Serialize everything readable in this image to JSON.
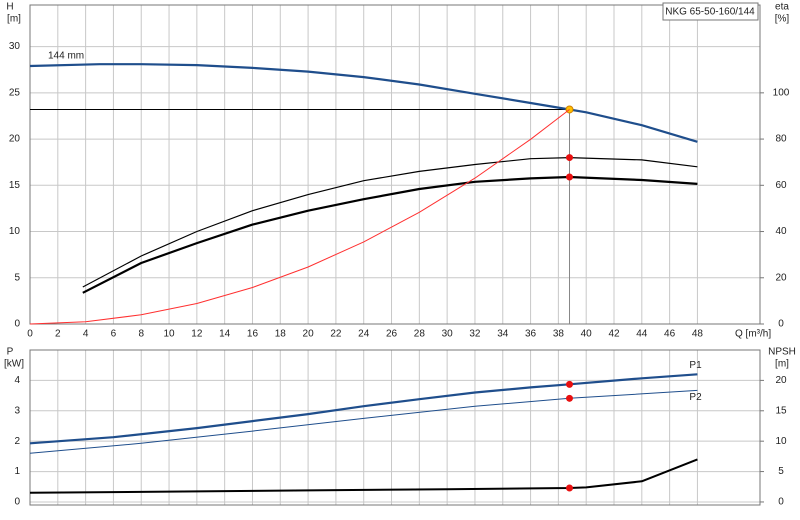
{
  "chart_data": [
    {
      "type": "line",
      "title": "NKG 65-50-160/144",
      "y_label": "H",
      "y_unit": "[m]",
      "y2_label": "eta",
      "y2_unit": "[%]",
      "x_label": "Q [m³/h]",
      "xlim": [
        0,
        52.5
      ],
      "ylim": [
        0,
        34.5
      ],
      "y2lim": [
        0,
        138
      ],
      "xticks": [
        0,
        2,
        4,
        6,
        8,
        10,
        12,
        14,
        16,
        18,
        20,
        22,
        24,
        26,
        28,
        30,
        32,
        34,
        36,
        38,
        40,
        42,
        44,
        46,
        48
      ],
      "yticks": [
        0,
        5,
        10,
        15,
        20,
        25,
        30
      ],
      "y2ticks": [
        0,
        20,
        40,
        60,
        80,
        100
      ],
      "grid": true,
      "operating_point": {
        "q": 38.8,
        "h": 23.2
      },
      "series": [
        {
          "name": "144 mm",
          "color": "#1f4e8c",
          "width": 2.2,
          "marker": "#ffc000",
          "x": [
            0,
            5,
            8,
            12,
            16,
            20,
            24,
            28,
            32,
            36,
            38.8,
            40,
            44,
            48
          ],
          "values": [
            27.9,
            28.1,
            28.1,
            28.0,
            27.7,
            27.3,
            26.7,
            25.9,
            24.9,
            23.9,
            23.2,
            22.9,
            21.5,
            19.7
          ]
        },
        {
          "color": "#000000",
          "width": 1.2,
          "axis": "y2",
          "marker": "#e81010",
          "x": [
            3.8,
            8,
            12,
            16,
            20,
            24,
            28,
            32,
            36,
            38.8,
            44,
            48
          ],
          "values": [
            16,
            29.4,
            40,
            49,
            56,
            62,
            66,
            69,
            71.5,
            72,
            71,
            68
          ]
        },
        {
          "color": "#000000",
          "width": 2.2,
          "axis": "y2",
          "marker": "#e81010",
          "x": [
            3.8,
            8,
            12,
            16,
            20,
            24,
            28,
            32,
            36,
            38.8,
            44,
            48
          ],
          "values": [
            13.5,
            26.4,
            35,
            43,
            49,
            54,
            58.4,
            61.5,
            63,
            63.6,
            62.3,
            60.6
          ]
        },
        {
          "color": "#ff3030",
          "width": 1,
          "x": [
            0,
            4,
            8,
            12,
            16,
            20,
            24,
            28,
            32,
            36,
            38.8
          ],
          "values": [
            0,
            0.25,
            0.99,
            2.22,
            3.95,
            6.16,
            8.88,
            12.08,
            15.78,
            19.97,
            23.2
          ]
        }
      ]
    },
    {
      "type": "line",
      "y_label": "P",
      "y_unit": "[kW]",
      "y2_label": "NPSH",
      "y2_unit": "[m]",
      "xlim": [
        0,
        52.5
      ],
      "ylim": [
        -0.1,
        5
      ],
      "y2lim": [
        -0.5,
        25
      ],
      "yticks": [
        0,
        1,
        2,
        3,
        4
      ],
      "y2ticks": [
        0,
        5,
        10,
        15,
        20
      ],
      "grid": true,
      "series": [
        {
          "name": "P1",
          "color": "#1f4e8c",
          "width": 2.2,
          "marker": "#e81010",
          "x": [
            0,
            6,
            12,
            16,
            20,
            24,
            28,
            32,
            36,
            38.8,
            44,
            48
          ],
          "values": [
            1.93,
            2.13,
            2.43,
            2.66,
            2.89,
            3.15,
            3.38,
            3.6,
            3.77,
            3.87,
            4.07,
            4.2
          ]
        },
        {
          "name": "P2",
          "color": "#1f4e8c",
          "width": 1,
          "marker": "#e81010",
          "x": [
            0,
            8,
            16,
            24,
            32,
            38.8,
            48
          ],
          "values": [
            1.6,
            1.93,
            2.33,
            2.75,
            3.15,
            3.41,
            3.67
          ]
        },
        {
          "color": "#000000",
          "width": 2,
          "axis": "y2",
          "marker": "#e81010",
          "x": [
            0,
            10,
            20,
            30,
            38.8,
            40,
            44,
            48
          ],
          "values": [
            1.5,
            1.7,
            1.9,
            2.1,
            2.3,
            2.4,
            3.4,
            7.0
          ]
        }
      ]
    }
  ]
}
